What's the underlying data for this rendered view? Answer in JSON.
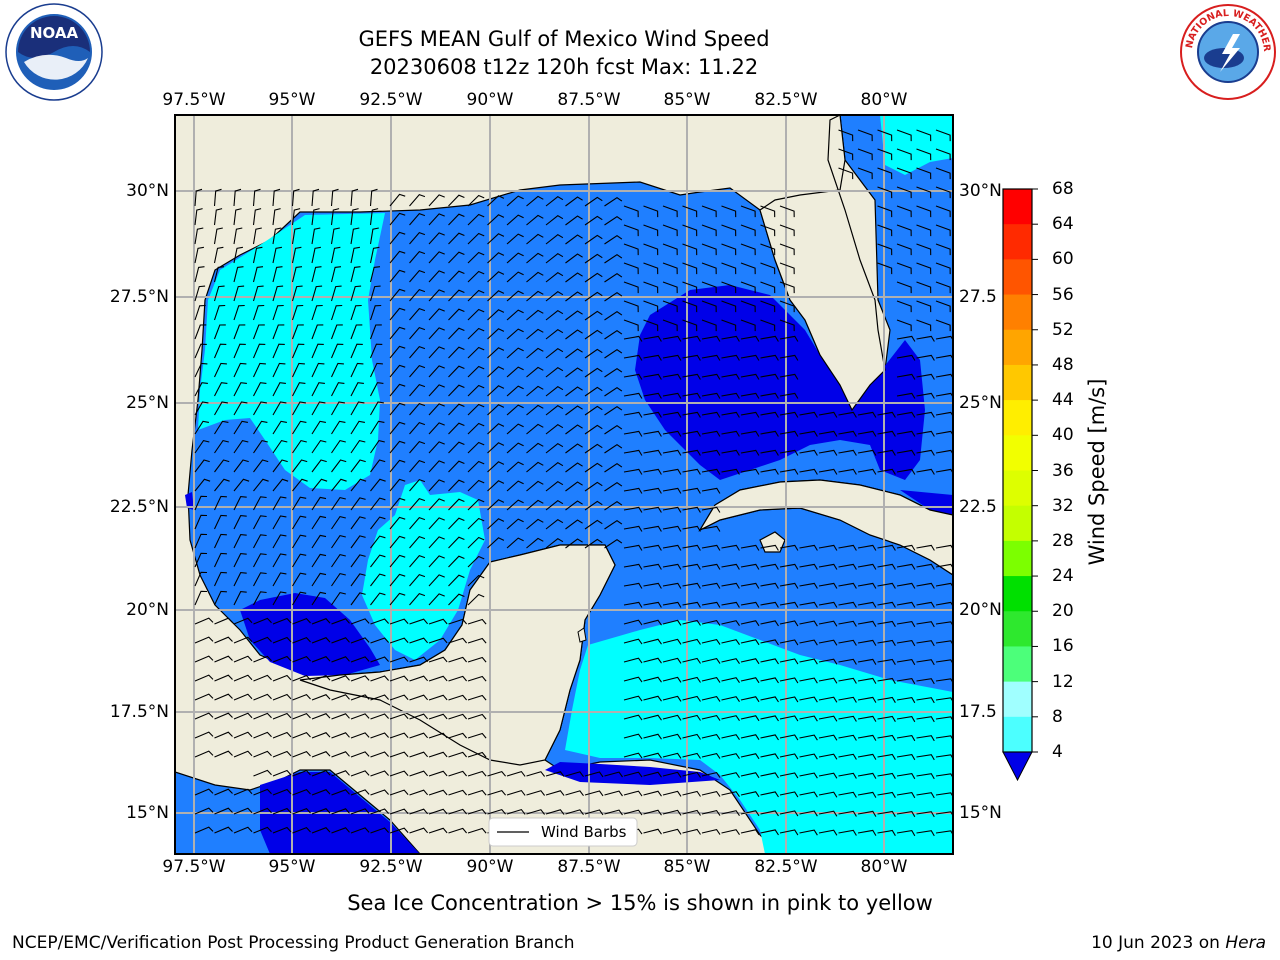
{
  "title": {
    "line1": "GEFS MEAN Gulf of Mexico Wind Speed",
    "line2": "20230608 t12z 120h fcst   Max: 11.22"
  },
  "map": {
    "lon_ticks": [
      "97.5°W",
      "95°W",
      "92.5°W",
      "90°W",
      "87.5°W",
      "85°W",
      "82.5°W",
      "80°W"
    ],
    "lat_ticks_left": [
      "30°N",
      "27.5°N",
      "25°N",
      "22.5°N",
      "20°N",
      "17.5°N",
      "15°N"
    ],
    "lat_ticks_right": [
      "30°N",
      "27.5",
      "25°N",
      "22.5",
      "20°N",
      "17.5",
      "15°N"
    ],
    "legend_label": "Wind Barbs",
    "colors": {
      "land": "#efeddc",
      "water_4_8": "#1f7fff",
      "water_lt_4": "#0000e8",
      "water_8_12": "#00ffff",
      "water_12_16": "#40ffff",
      "grid": "#b0b0b0"
    }
  },
  "colorbar": {
    "label": "Wind Speed [m/s]",
    "ticks": [
      "68",
      "64",
      "60",
      "56",
      "52",
      "48",
      "44",
      "40",
      "36",
      "32",
      "28",
      "24",
      "20",
      "16",
      "12",
      "8",
      "4"
    ],
    "colors": [
      "#ff0000",
      "#ff2a00",
      "#ff5500",
      "#ff8000",
      "#ffa500",
      "#ffc800",
      "#ffee00",
      "#f2ff00",
      "#ddff00",
      "#c4ff00",
      "#7cff00",
      "#00e000",
      "#2ee82e",
      "#4cff7a",
      "#a0ffff",
      "#4cffff",
      "#00ffff",
      "#1f7fff"
    ],
    "under_color": "#0000e8"
  },
  "footnote": "Sea Ice Concentration > 15% is shown in pink to yellow",
  "credit": "NCEP/EMC/Verification Post Processing Product Generation Branch",
  "date": {
    "text": "10 Jun 2023 on ",
    "host": "Hera"
  },
  "logos": {
    "noaa": "NOAA",
    "nws": "NATIONAL WEATHER SERVICE"
  }
}
